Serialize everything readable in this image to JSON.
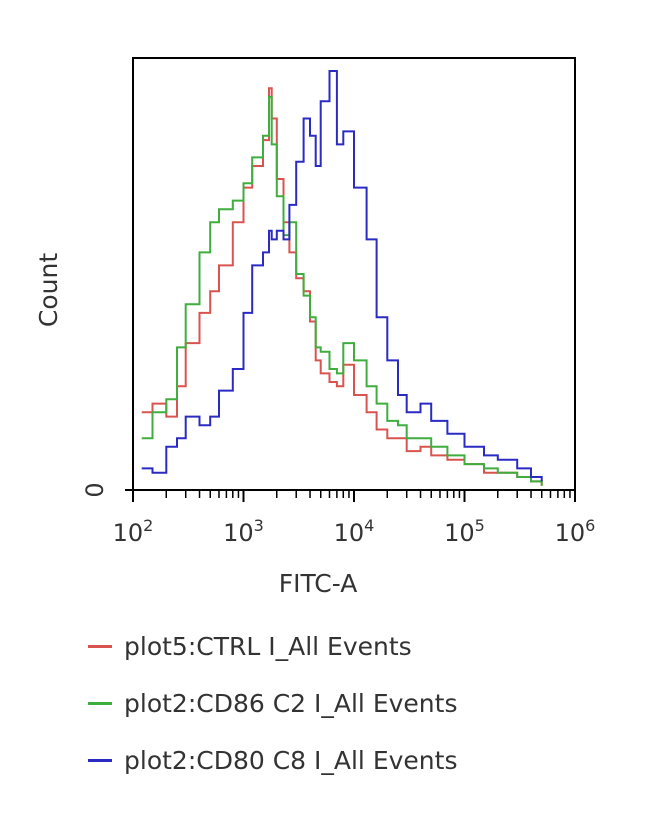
{
  "chart_data": {
    "type": "line",
    "title": "",
    "xlabel": "FITC-A",
    "ylabel": "Count",
    "x_scale": "log",
    "xlim": [
      100,
      1000000
    ],
    "ylim": [
      0,
      100
    ],
    "x_ticks": [
      {
        "value": 100,
        "base": "10",
        "exp": "2"
      },
      {
        "value": 1000,
        "base": "10",
        "exp": "3"
      },
      {
        "value": 10000,
        "base": "10",
        "exp": "4"
      },
      {
        "value": 100000,
        "base": "10",
        "exp": "5"
      },
      {
        "value": 1000000,
        "base": "10",
        "exp": "6"
      }
    ],
    "y_ticks": [
      {
        "value": 0,
        "label": "0"
      }
    ],
    "legend_position": "bottom",
    "series": [
      {
        "name": "plot5:CTRL I_All Events",
        "color": "#d9534f",
        "x": [
          120,
          150,
          200,
          250,
          300,
          400,
          500,
          600,
          800,
          1000,
          1200,
          1500,
          1700,
          1800,
          2000,
          2300,
          2600,
          3000,
          3500,
          4000,
          4500,
          5000,
          6000,
          7000,
          8000,
          10000,
          13000,
          16000,
          20000,
          25000,
          30000,
          40000,
          50000,
          70000,
          100000,
          150000,
          200000,
          300000,
          400000,
          500000
        ],
        "y": [
          18,
          20,
          17,
          24,
          34,
          41,
          46,
          52,
          62,
          70,
          75,
          81,
          93,
          86,
          72,
          62,
          55,
          49,
          46,
          39,
          30,
          27,
          25,
          24,
          29,
          22,
          18,
          14,
          12,
          12,
          9,
          10,
          8,
          7,
          6,
          4,
          4,
          3,
          2,
          1
        ]
      },
      {
        "name": "plot2:CD86 C2 I_All Events",
        "color": "#3fae3f",
        "x": [
          120,
          150,
          200,
          250,
          300,
          400,
          500,
          600,
          800,
          1000,
          1200,
          1500,
          1700,
          1800,
          2000,
          2300,
          2600,
          3000,
          3500,
          4000,
          4500,
          5000,
          6000,
          7000,
          8000,
          10000,
          13000,
          16000,
          20000,
          25000,
          30000,
          40000,
          50000,
          70000,
          100000,
          150000,
          200000,
          300000,
          400000,
          500000
        ],
        "y": [
          12,
          18,
          21,
          33,
          43,
          55,
          62,
          65,
          67,
          71,
          77,
          82,
          91,
          80,
          68,
          59,
          62,
          50,
          45,
          40,
          33,
          32,
          28,
          27,
          34,
          30,
          24,
          20,
          16,
          15,
          12,
          12,
          10,
          8,
          6,
          5,
          4,
          3,
          2,
          1
        ]
      },
      {
        "name": "plot2:CD80 C8 I_All Events",
        "color": "#2b2bc4",
        "x": [
          120,
          150,
          200,
          250,
          300,
          400,
          500,
          600,
          800,
          1000,
          1200,
          1500,
          1700,
          1800,
          2000,
          2300,
          2600,
          3000,
          3500,
          4000,
          4500,
          5000,
          6000,
          7000,
          8000,
          10000,
          13000,
          16000,
          20000,
          25000,
          30000,
          40000,
          50000,
          70000,
          100000,
          150000,
          200000,
          300000,
          400000,
          500000
        ],
        "y": [
          5,
          4,
          10,
          12,
          17,
          15,
          17,
          23,
          28,
          41,
          52,
          55,
          60,
          58,
          60,
          58,
          66,
          76,
          86,
          82,
          75,
          90,
          97,
          80,
          83,
          70,
          58,
          40,
          30,
          22,
          18,
          20,
          16,
          13,
          10,
          8,
          7,
          5,
          3,
          2
        ]
      }
    ]
  }
}
